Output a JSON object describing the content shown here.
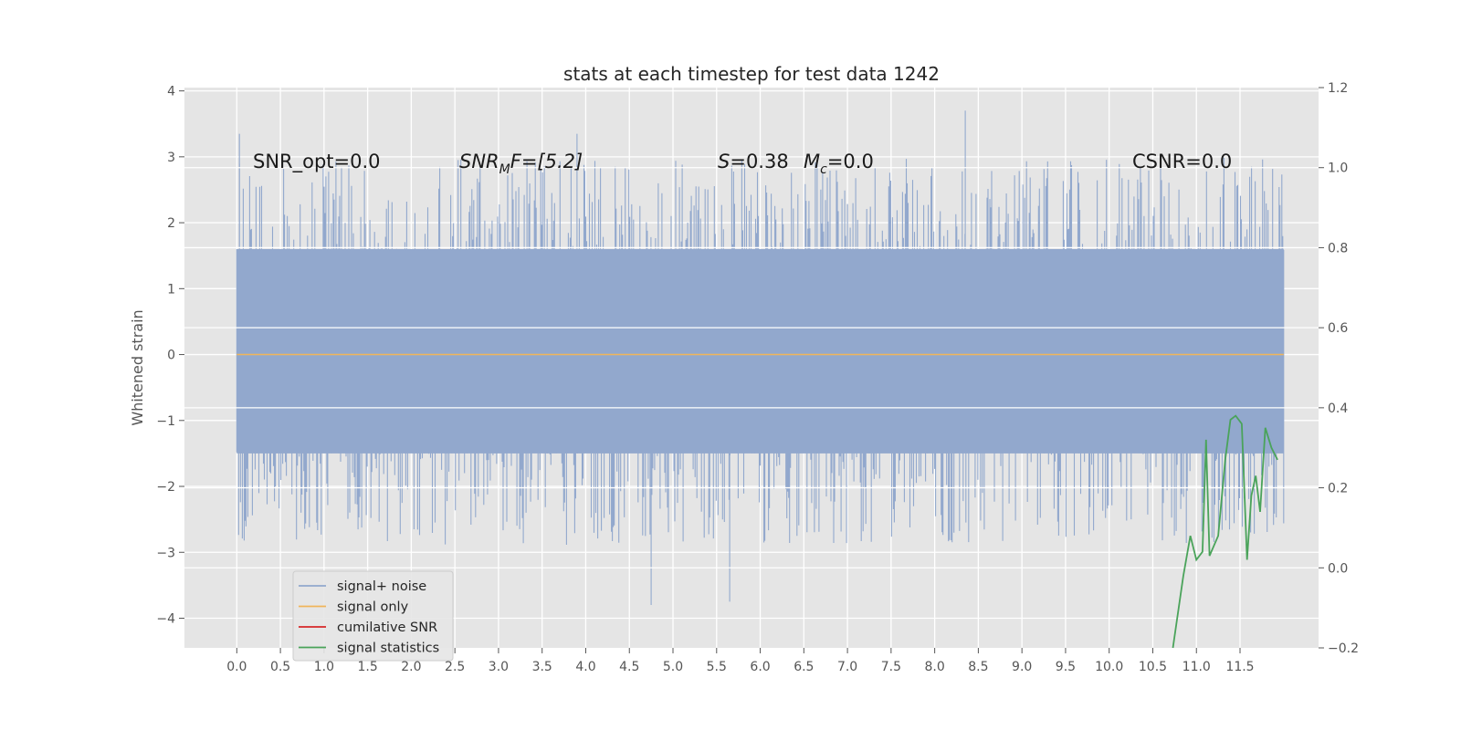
{
  "chart_data": {
    "type": "line",
    "title": "stats at each timestep for test data 1242",
    "ylabel": "Whitened strain",
    "xlim": [
      -0.6,
      12.4
    ],
    "ylim": [
      -4.45,
      4.05
    ],
    "ylim_right": [
      -0.2,
      1.2
    ],
    "x_ticks": [
      "0.0",
      "0.5",
      "1.0",
      "1.5",
      "2.0",
      "2.5",
      "3.0",
      "3.5",
      "4.0",
      "4.5",
      "5.0",
      "5.5",
      "6.0",
      "6.5",
      "7.0",
      "7.5",
      "8.0",
      "8.5",
      "9.0",
      "9.5",
      "10.0",
      "10.5",
      "11.0",
      "11.5"
    ],
    "y_ticks_left": [
      "4",
      "3",
      "2",
      "1",
      "0",
      "−1",
      "−2",
      "−3",
      "−4"
    ],
    "y_ticks_right": [
      "1.2",
      "1.0",
      "0.8",
      "0.6",
      "0.4",
      "0.2",
      "0.0",
      "−0.2"
    ],
    "grid": true,
    "legend_position": "lower-left",
    "annotations": {
      "snr_opt": "SNR_opt=0.0",
      "snr_mf_main": "SNR",
      "snr_mf_sub": "M",
      "snr_mf_rest": "F=[5.2]",
      "s_var": "S",
      "s_val": "=0.38",
      "mc_var": "M",
      "mc_sub": "c",
      "mc_val": "=0.0",
      "csnr": "CSNR=0.0"
    },
    "series": [
      {
        "name": "signal+ noise",
        "color": "#92a8cd",
        "axis": "left",
        "description": "whitened noise, approx. uniform in [-1.5, 1.6] with spikes to about +/-3.5",
        "x_range": [
          0.0,
          12.0
        ],
        "band_low": -1.5,
        "band_high": 1.6,
        "notable_peaks": [
          [
            0.03,
            3.35
          ],
          [
            3.9,
            3.35
          ],
          [
            8.35,
            3.7
          ],
          [
            4.75,
            -3.8
          ],
          [
            5.65,
            -3.75
          ],
          [
            6.0,
            1.3
          ]
        ]
      },
      {
        "name": "signal only",
        "color": "#f0b55a",
        "axis": "left",
        "x": [
          0.0,
          12.0
        ],
        "y": [
          0.0,
          0.0
        ]
      },
      {
        "name": "cumilative SNR",
        "color": "#d62728",
        "axis": "right",
        "x": [],
        "y": []
      },
      {
        "name": "signal statistics",
        "color": "#4aa35a",
        "axis": "right",
        "x": [
          10.73,
          10.85,
          10.93,
          11.0,
          11.07,
          11.11,
          11.15,
          11.25,
          11.33,
          11.39,
          11.45,
          11.52,
          11.58,
          11.63,
          11.68,
          11.73,
          11.79,
          11.86,
          11.93
        ],
        "y": [
          -0.2,
          -0.02,
          0.08,
          0.02,
          0.04,
          0.32,
          0.03,
          0.08,
          0.27,
          0.37,
          0.38,
          0.36,
          0.02,
          0.18,
          0.23,
          0.14,
          0.35,
          0.3,
          0.27
        ]
      }
    ]
  }
}
